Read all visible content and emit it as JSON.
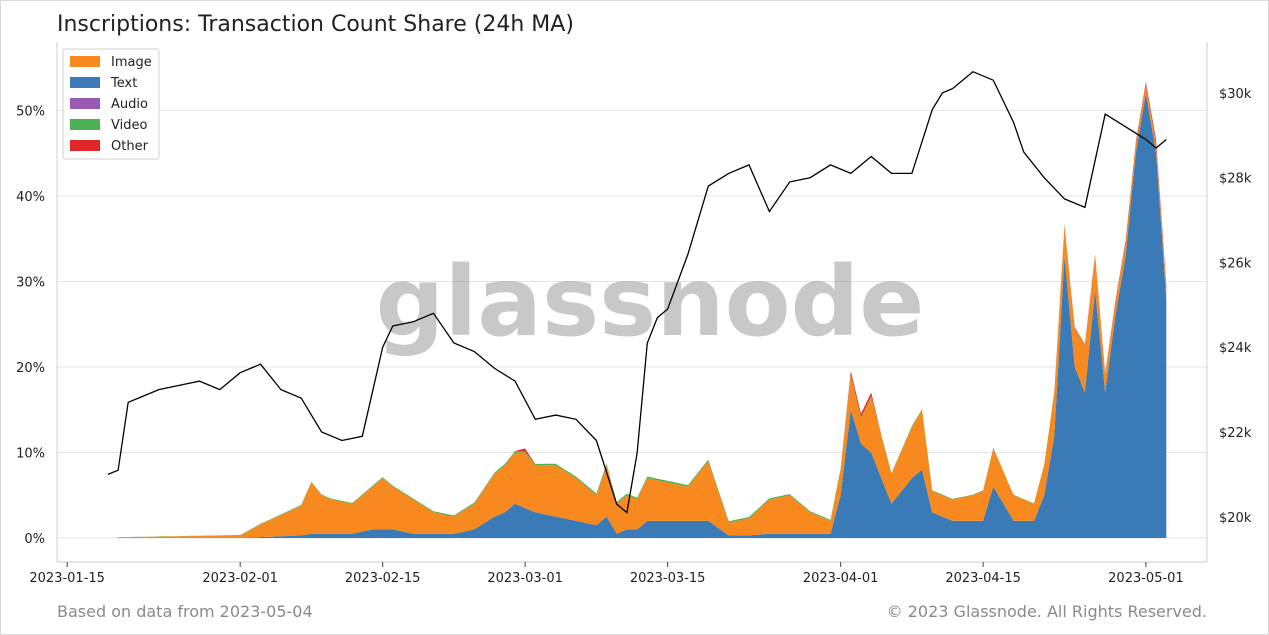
{
  "title": "Inscriptions: Transaction Count Share (24h MA)",
  "footer": {
    "left": "Based on data from 2023-05-04",
    "right": "© 2023 Glassnode. All Rights Reserved."
  },
  "watermark": "glassnode",
  "chart_data": {
    "type": "area",
    "title": "Inscriptions: Transaction Count Share (24h MA)",
    "x_axis": {
      "type": "date",
      "range": [
        "2023-01-14",
        "2023-05-07"
      ],
      "tick_labels": [
        "2023-01-15",
        "2023-02-01",
        "2023-02-15",
        "2023-03-01",
        "2023-03-15",
        "2023-04-01",
        "2023-04-15",
        "2023-05-01"
      ]
    },
    "y_left": {
      "range": [
        0,
        58
      ],
      "tick_values": [
        0,
        10,
        20,
        30,
        40,
        50
      ],
      "tick_labels": [
        "0%",
        "10%",
        "20%",
        "30%",
        "40%",
        "50%"
      ]
    },
    "y_right": {
      "range": [
        19500,
        31200
      ],
      "tick_values": [
        20000,
        22000,
        24000,
        26000,
        28000,
        30000
      ],
      "tick_labels": [
        "$20k",
        "$22k",
        "$24k",
        "$26k",
        "$28k",
        "$30k"
      ]
    },
    "grid": true,
    "legend_position": "top-left",
    "colors": {
      "Image": "#f7891f",
      "Text": "#3a7ab7",
      "Audio": "#9b59b6",
      "Video": "#4caf50",
      "Other": "#e02626",
      "Price": "#000000"
    },
    "series": [
      {
        "name": "Image",
        "kind": "stacked-area",
        "x": [
          "2023-01-20",
          "2023-02-01",
          "2023-02-03",
          "2023-02-05",
          "2023-02-07",
          "2023-02-08",
          "2023-02-09",
          "2023-02-10",
          "2023-02-12",
          "2023-02-14",
          "2023-02-15",
          "2023-02-16",
          "2023-02-18",
          "2023-02-20",
          "2023-02-22",
          "2023-02-24",
          "2023-02-26",
          "2023-02-27",
          "2023-02-28",
          "2023-03-01",
          "2023-03-02",
          "2023-03-04",
          "2023-03-06",
          "2023-03-08",
          "2023-03-09",
          "2023-03-10",
          "2023-03-11",
          "2023-03-12",
          "2023-03-13",
          "2023-03-15",
          "2023-03-17",
          "2023-03-19",
          "2023-03-21",
          "2023-03-23",
          "2023-03-25",
          "2023-03-27",
          "2023-03-29",
          "2023-03-31",
          "2023-04-01",
          "2023-04-02",
          "2023-04-03",
          "2023-04-04",
          "2023-04-06",
          "2023-04-08",
          "2023-04-09",
          "2023-04-10",
          "2023-04-12",
          "2023-04-14",
          "2023-04-15",
          "2023-04-16",
          "2023-04-18",
          "2023-04-20",
          "2023-04-21",
          "2023-04-22",
          "2023-04-23",
          "2023-04-24",
          "2023-04-25",
          "2023-04-26",
          "2023-04-27",
          "2023-04-28",
          "2023-04-29",
          "2023-04-30",
          "2023-05-01",
          "2023-05-02",
          "2023-05-03"
        ],
        "values": [
          0.1,
          0.3,
          1.5,
          2.5,
          3.5,
          6.0,
          4.5,
          4.0,
          3.5,
          5.0,
          6.0,
          5.0,
          4.0,
          2.5,
          2.0,
          3.0,
          5.0,
          5.5,
          6.0,
          6.5,
          5.5,
          6.0,
          5.0,
          3.5,
          6.0,
          3.5,
          4.0,
          3.5,
          5.0,
          4.5,
          4.0,
          7.0,
          1.5,
          2.0,
          4.0,
          4.5,
          2.5,
          1.5,
          3.0,
          4.0,
          3.0,
          6.5,
          3.5,
          6.0,
          7.0,
          2.5,
          2.5,
          3.0,
          3.5,
          4.5,
          3.0,
          2.0,
          3.5,
          5.0,
          3.5,
          4.5,
          5.5,
          4.0,
          2.0,
          1.5,
          1.5,
          1.0,
          1.0,
          1.0,
          1.0
        ]
      },
      {
        "name": "Text",
        "kind": "stacked-area",
        "x": [
          "2023-01-20",
          "2023-02-01",
          "2023-02-03",
          "2023-02-05",
          "2023-02-07",
          "2023-02-08",
          "2023-02-09",
          "2023-02-10",
          "2023-02-12",
          "2023-02-14",
          "2023-02-15",
          "2023-02-16",
          "2023-02-18",
          "2023-02-20",
          "2023-02-22",
          "2023-02-24",
          "2023-02-26",
          "2023-02-27",
          "2023-02-28",
          "2023-03-01",
          "2023-03-02",
          "2023-03-04",
          "2023-03-06",
          "2023-03-08",
          "2023-03-09",
          "2023-03-10",
          "2023-03-11",
          "2023-03-12",
          "2023-03-13",
          "2023-03-15",
          "2023-03-17",
          "2023-03-19",
          "2023-03-21",
          "2023-03-23",
          "2023-03-25",
          "2023-03-27",
          "2023-03-29",
          "2023-03-31",
          "2023-04-01",
          "2023-04-02",
          "2023-04-03",
          "2023-04-04",
          "2023-04-06",
          "2023-04-08",
          "2023-04-09",
          "2023-04-10",
          "2023-04-12",
          "2023-04-14",
          "2023-04-15",
          "2023-04-16",
          "2023-04-18",
          "2023-04-20",
          "2023-04-21",
          "2023-04-22",
          "2023-04-23",
          "2023-04-24",
          "2023-04-25",
          "2023-04-26",
          "2023-04-27",
          "2023-04-28",
          "2023-04-29",
          "2023-04-30",
          "2023-05-01",
          "2023-05-02",
          "2023-05-03"
        ],
        "values": [
          0.0,
          0.0,
          0.1,
          0.2,
          0.3,
          0.5,
          0.5,
          0.5,
          0.5,
          1.0,
          1.0,
          1.0,
          0.5,
          0.5,
          0.5,
          1.0,
          2.5,
          3.0,
          4.0,
          3.5,
          3.0,
          2.5,
          2.0,
          1.5,
          2.5,
          0.5,
          1.0,
          1.0,
          2.0,
          2.0,
          2.0,
          2.0,
          0.3,
          0.3,
          0.5,
          0.5,
          0.5,
          0.5,
          5.0,
          15.0,
          11.0,
          10.0,
          4.0,
          7.0,
          8.0,
          3.0,
          2.0,
          2.0,
          2.0,
          6.0,
          2.0,
          2.0,
          5.0,
          12.0,
          33.0,
          20.0,
          17.0,
          29.0,
          17.0,
          26.0,
          33.0,
          45.0,
          52.0,
          45.0,
          28.0
        ]
      },
      {
        "name": "Audio",
        "kind": "stacked-area",
        "x": [
          "2023-01-20",
          "2023-05-03"
        ],
        "values": [
          0.0,
          0.0
        ]
      },
      {
        "name": "Video",
        "kind": "stacked-area",
        "x": [
          "2023-01-20",
          "2023-03-10",
          "2023-05-03"
        ],
        "values": [
          0.0,
          0.2,
          0.0
        ]
      },
      {
        "name": "Other",
        "kind": "stacked-area",
        "x": [
          "2023-01-20",
          "2023-02-28",
          "2023-03-01",
          "2023-03-02",
          "2023-04-01",
          "2023-04-02",
          "2023-04-04",
          "2023-04-05",
          "2023-04-20",
          "2023-05-01",
          "2023-05-02",
          "2023-05-03"
        ],
        "values": [
          0.0,
          0.0,
          0.3,
          0.0,
          0.0,
          0.4,
          0.4,
          0.0,
          0.0,
          0.3,
          0.5,
          0.5
        ]
      },
      {
        "name": "Price",
        "kind": "line",
        "axis": "right",
        "x": [
          "2023-01-19",
          "2023-01-20",
          "2023-01-21",
          "2023-01-22",
          "2023-01-24",
          "2023-01-26",
          "2023-01-28",
          "2023-01-30",
          "2023-02-01",
          "2023-02-03",
          "2023-02-05",
          "2023-02-07",
          "2023-02-09",
          "2023-02-11",
          "2023-02-13",
          "2023-02-15",
          "2023-02-16",
          "2023-02-18",
          "2023-02-20",
          "2023-02-22",
          "2023-02-24",
          "2023-02-26",
          "2023-02-28",
          "2023-03-02",
          "2023-03-04",
          "2023-03-06",
          "2023-03-08",
          "2023-03-10",
          "2023-03-11",
          "2023-03-12",
          "2023-03-13",
          "2023-03-14",
          "2023-03-15",
          "2023-03-17",
          "2023-03-19",
          "2023-03-21",
          "2023-03-23",
          "2023-03-25",
          "2023-03-27",
          "2023-03-29",
          "2023-03-31",
          "2023-04-02",
          "2023-04-04",
          "2023-04-06",
          "2023-04-08",
          "2023-04-10",
          "2023-04-11",
          "2023-04-12",
          "2023-04-14",
          "2023-04-16",
          "2023-04-18",
          "2023-04-19",
          "2023-04-21",
          "2023-04-23",
          "2023-04-25",
          "2023-04-27",
          "2023-04-29",
          "2023-05-01",
          "2023-05-02",
          "2023-05-03"
        ],
        "values": [
          21000,
          21100,
          22700,
          22800,
          23000,
          23100,
          23200,
          23000,
          23400,
          23600,
          23000,
          22800,
          22000,
          21800,
          21900,
          24000,
          24500,
          24600,
          24800,
          24100,
          23900,
          23500,
          23200,
          22300,
          22400,
          22300,
          21800,
          20300,
          20100,
          21500,
          24100,
          24700,
          24900,
          26200,
          27800,
          28100,
          28300,
          27200,
          27900,
          28000,
          28300,
          28100,
          28500,
          28100,
          28100,
          29600,
          30000,
          30100,
          30500,
          30300,
          29300,
          28600,
          28000,
          27500,
          27300,
          29500,
          29200,
          28900,
          28700,
          28900
        ]
      }
    ]
  }
}
